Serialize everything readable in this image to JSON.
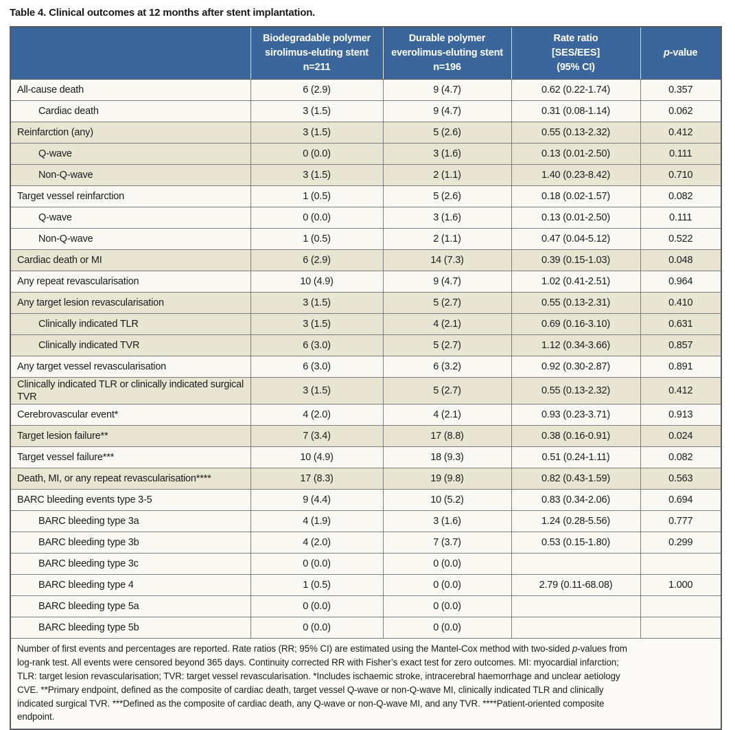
{
  "title": "Table 4. Clinical outcomes at 12 months after stent implantation.",
  "colors": {
    "header_bg": "#3a669b",
    "row_cream": "#e9e5d3",
    "row_white": "#f9f8f3",
    "footer_bg": "#fbfaf6",
    "grid_line": "#7c7c7c"
  },
  "table": {
    "header": {
      "col_outcome": "",
      "col_ses": "Biodegradable polymer\nsirolimus-eluting stent\nn=211",
      "col_ees": "Durable polymer\neverolimus-eluting stent\nn=196",
      "col_rr": "Rate ratio\n[SES/EES]\n(95% CI)",
      "col_p_italic": "p",
      "col_p_rest": "-value"
    },
    "rows": [
      {
        "label": "All-cause death",
        "indent": 0,
        "bg": "white",
        "ses": "6 (2.9)",
        "ees": "9 (4.7)",
        "rr": "0.62 (0.22-1.74)",
        "p": "0.357"
      },
      {
        "label": "Cardiac death",
        "indent": 1,
        "bg": "white",
        "ses": "3 (1.5)",
        "ees": "9 (4.7)",
        "rr": "0.31 (0.08-1.14)",
        "p": "0.062"
      },
      {
        "label": "Reinfarction (any)",
        "indent": 0,
        "bg": "cream",
        "ses": "3 (1.5)",
        "ees": "5 (2.6)",
        "rr": "0.55 (0.13-2.32)",
        "p": "0.412"
      },
      {
        "label": "Q-wave",
        "indent": 1,
        "bg": "cream",
        "ses": "0 (0.0)",
        "ees": "3 (1.6)",
        "rr": "0.13 (0.01-2.50)",
        "p": "0.111"
      },
      {
        "label": "Non-Q-wave",
        "indent": 1,
        "bg": "cream",
        "ses": "3 (1.5)",
        "ees": "2 (1.1)",
        "rr": "1.40 (0.23-8.42)",
        "p": "0.710"
      },
      {
        "label": "Target vessel reinfarction",
        "indent": 0,
        "bg": "white",
        "ses": "1 (0.5)",
        "ees": "5 (2.6)",
        "rr": "0.18 (0.02-1.57)",
        "p": "0.082"
      },
      {
        "label": "Q-wave",
        "indent": 1,
        "bg": "white",
        "ses": "0 (0.0)",
        "ees": "3 (1.6)",
        "rr": "0.13 (0.01-2.50)",
        "p": "0.111"
      },
      {
        "label": "Non-Q-wave",
        "indent": 1,
        "bg": "white",
        "ses": "1 (0.5)",
        "ees": "2 (1.1)",
        "rr": "0.47 (0.04-5.12)",
        "p": "0.522"
      },
      {
        "label": "Cardiac death or MI",
        "indent": 0,
        "bg": "cream",
        "ses": "6 (2.9)",
        "ees": "14 (7.3)",
        "rr": "0.39 (0.15-1.03)",
        "p": "0.048"
      },
      {
        "label": "Any repeat revascularisation",
        "indent": 0,
        "bg": "white",
        "ses": "10 (4.9)",
        "ees": "9 (4.7)",
        "rr": "1.02 (0.41-2.51)",
        "p": "0.964"
      },
      {
        "label": "Any target lesion revascularisation",
        "indent": 0,
        "bg": "cream",
        "ses": "3 (1.5)",
        "ees": "5 (2.7)",
        "rr": "0.55 (0.13-2.31)",
        "p": "0.410"
      },
      {
        "label": "Clinically indicated TLR",
        "indent": 1,
        "bg": "cream",
        "ses": "3 (1.5)",
        "ees": "4 (2.1)",
        "rr": "0.69 (0.16-3.10)",
        "p": "0.631"
      },
      {
        "label": "Clinically indicated TVR",
        "indent": 1,
        "bg": "cream",
        "ses": "6 (3.0)",
        "ees": "5 (2.7)",
        "rr": "1.12 (0.34-3.66)",
        "p": "0.857"
      },
      {
        "label": "Any target vessel revascularisation",
        "indent": 0,
        "bg": "white",
        "ses": "6 (3.0)",
        "ees": "6 (3.2)",
        "rr": "0.92 (0.30-2.87)",
        "p": "0.891"
      },
      {
        "label": "Clinically indicated TLR or clinically indicated surgical TVR",
        "indent": 0,
        "bg": "cream",
        "ses": "3 (1.5)",
        "ees": "5 (2.7)",
        "rr": "0.55 (0.13-2.32)",
        "p": "0.412"
      },
      {
        "label": "Cerebrovascular event*",
        "indent": 0,
        "bg": "white",
        "ses": "4 (2.0)",
        "ees": "4 (2.1)",
        "rr": "0.93 (0.23-3.71)",
        "p": "0.913"
      },
      {
        "label": "Target lesion failure**",
        "indent": 0,
        "bg": "cream",
        "ses": "7 (3.4)",
        "ees": "17 (8.8)",
        "rr": "0.38 (0.16-0.91)",
        "p": "0.024"
      },
      {
        "label": "Target vessel failure***",
        "indent": 0,
        "bg": "white",
        "ses": "10 (4.9)",
        "ees": "18 (9.3)",
        "rr": "0.51 (0.24-1.11)",
        "p": "0.082"
      },
      {
        "label": "Death, MI, or any repeat revascularisation****",
        "indent": 0,
        "bg": "cream",
        "ses": "17 (8.3)",
        "ees": "19 (9.8)",
        "rr": "0.82 (0.43-1.59)",
        "p": "0.563"
      },
      {
        "label": "BARC bleeding events type 3-5",
        "indent": 0,
        "bg": "white",
        "ses": "9 (4.4)",
        "ees": "10 (5.2)",
        "rr": "0.83 (0.34-2.06)",
        "p": "0.694"
      },
      {
        "label": "BARC bleeding type 3a",
        "indent": 1,
        "bg": "white",
        "ses": "4 (1.9)",
        "ees": "3 (1.6)",
        "rr": "1.24 (0.28-5.56)",
        "p": "0.777"
      },
      {
        "label": "BARC bleeding type 3b",
        "indent": 1,
        "bg": "white",
        "ses": "4 (2.0)",
        "ees": "7 (3.7)",
        "rr": "0.53 (0.15-1.80)",
        "p": "0.299"
      },
      {
        "label": "BARC bleeding type 3c",
        "indent": 1,
        "bg": "white",
        "ses": "0 (0.0)",
        "ees": "0 (0.0)",
        "rr": "",
        "p": ""
      },
      {
        "label": "BARC bleeding type 4",
        "indent": 1,
        "bg": "white",
        "ses": "1 (0.5)",
        "ees": "0 (0.0)",
        "rr": "2.79 (0.11-68.08)",
        "p": "1.000"
      },
      {
        "label": "BARC bleeding type 5a",
        "indent": 1,
        "bg": "white",
        "ses": "0 (0.0)",
        "ees": "0 (0.0)",
        "rr": "",
        "p": ""
      },
      {
        "label": "BARC bleeding type 5b",
        "indent": 1,
        "bg": "white",
        "ses": "0 (0.0)",
        "ees": "0 (0.0)",
        "rr": "",
        "p": ""
      }
    ],
    "footnote": {
      "seg1": "Number of first events and percentages are reported. Rate ratios (RR; 95% CI) are estimated using the Mantel-Cox method with two-sided ",
      "seg2_italic": "p",
      "seg3": "-values from\nlog-rank test. All events were censored beyond 365 days. Continuity corrected RR with Fisher’s exact test for zero outcomes. MI: myocardial infarction;\nTLR: target lesion revascularisation; TVR: target vessel revascularisation. *Includes ischaemic stroke, intracerebral haemorrhage and unclear aetiology\nCVE. **Primary endpoint, defined as the composite of cardiac death, target vessel Q-wave or non-Q-wave MI, clinically indicated TLR and clinically\nindicated surgical TVR. ***Defined as the composite of cardiac death, any Q-wave or non-Q-wave MI, and any TVR. ****Patient-oriented composite\nendpoint."
    }
  }
}
